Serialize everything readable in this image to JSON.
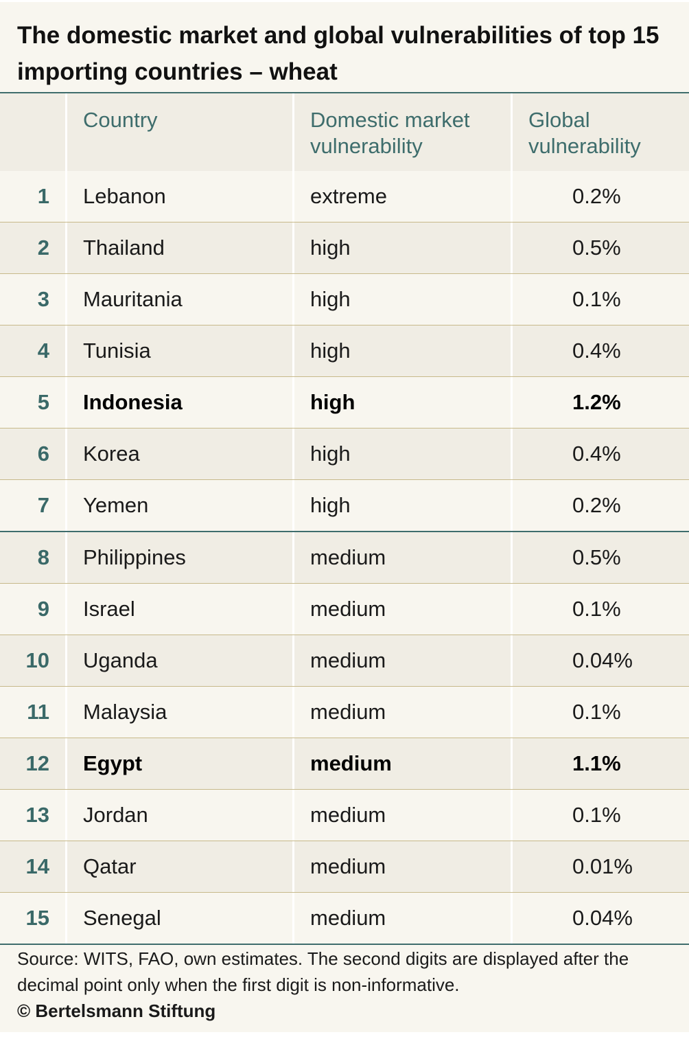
{
  "title": "The domestic market and global vulnerabilities of top 15 importing countries – wheat",
  "headers": {
    "rank": "",
    "country": "Country",
    "domestic": "Domestic market vulnerability",
    "global": "Global vulnerability"
  },
  "rows": [
    {
      "rank": "1",
      "country": "Lebanon",
      "domestic": "extreme",
      "global": "0.2%",
      "highlight": false
    },
    {
      "rank": "2",
      "country": "Thailand",
      "domestic": "high",
      "global": "0.5%",
      "highlight": false
    },
    {
      "rank": "3",
      "country": "Mauritania",
      "domestic": "high",
      "global": "0.1%",
      "highlight": false
    },
    {
      "rank": "4",
      "country": "Tunisia",
      "domestic": "high",
      "global": "0.4%",
      "highlight": false
    },
    {
      "rank": "5",
      "country": "Indonesia",
      "domestic": "high",
      "global": "1.2%",
      "highlight": true
    },
    {
      "rank": "6",
      "country": "Korea",
      "domestic": "high",
      "global": "0.4%",
      "highlight": false
    },
    {
      "rank": "7",
      "country": "Yemen",
      "domestic": "high",
      "global": "0.2%",
      "highlight": false
    },
    {
      "rank": "8",
      "country": "Philippines",
      "domestic": "medium",
      "global": "0.5%",
      "highlight": false
    },
    {
      "rank": "9",
      "country": "Israel",
      "domestic": "medium",
      "global": "0.1%",
      "highlight": false
    },
    {
      "rank": "10",
      "country": "Uganda",
      "domestic": "medium",
      "global": "0.04%",
      "highlight": false
    },
    {
      "rank": "11",
      "country": "Malaysia",
      "domestic": "medium",
      "global": "0.1%",
      "highlight": false
    },
    {
      "rank": "12",
      "country": "Egypt",
      "domestic": "medium",
      "global": "1.1%",
      "highlight": true
    },
    {
      "rank": "13",
      "country": "Jordan",
      "domestic": "medium",
      "global": "0.1%",
      "highlight": false
    },
    {
      "rank": "14",
      "country": "Qatar",
      "domestic": "medium",
      "global": "0.01%",
      "highlight": false
    },
    {
      "rank": "15",
      "country": "Senegal",
      "domestic": "medium",
      "global": "0.04%",
      "highlight": false
    }
  ],
  "footer": {
    "source": "Source: WITS, FAO, own estimates. The second digits are displayed after the decimal point only when the first digit is non-informative.",
    "copyright": "© Bertelsmann Stiftung"
  },
  "colors": {
    "accent": "#3e6d6c",
    "row_light": "#f8f6ef",
    "row_dark": "#f0ede4",
    "separator": "#c7b98a"
  }
}
